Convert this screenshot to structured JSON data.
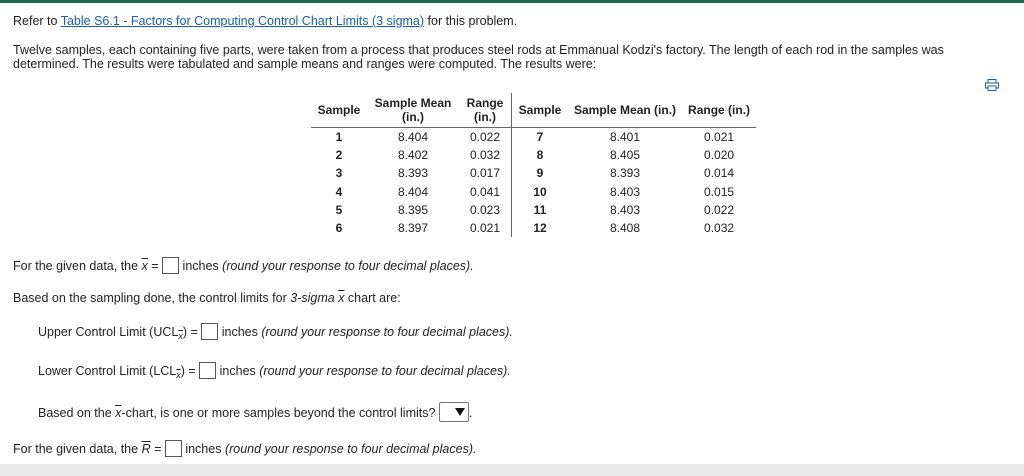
{
  "intro": {
    "prefix": "Refer to ",
    "link": "Table S6.1 - Factors for Computing Control Chart Limits (3 sigma)",
    "suffix": " for this problem."
  },
  "problem": "Twelve samples, each containing five parts, were taken from a process that produces steel rods at Emmanual Kodzi's factory. The length of each rod in the samples was determined. The results were tabulated and sample means and ranges were computed. The results were:",
  "icons": {
    "print": "print-icon",
    "dropdown": "dropdown-arrow-icon"
  },
  "table": {
    "headers": {
      "sample": "Sample",
      "mean": "Sample Mean (in.)",
      "range": "Range (in.)",
      "sample2": "Sample",
      "mean2": "Sample Mean (in.)",
      "range2": "Range (in.)"
    },
    "rows": [
      {
        "s1": "1",
        "m1": "8.404",
        "r1": "0.022",
        "s2": "7",
        "m2": "8.401",
        "r2": "0.021"
      },
      {
        "s1": "2",
        "m1": "8.402",
        "r1": "0.032",
        "s2": "8",
        "m2": "8.405",
        "r2": "0.020"
      },
      {
        "s1": "3",
        "m1": "8.393",
        "r1": "0.017",
        "s2": "9",
        "m2": "8.393",
        "r2": "0.014"
      },
      {
        "s1": "4",
        "m1": "8.404",
        "r1": "0.041",
        "s2": "10",
        "m2": "8.403",
        "r2": "0.015"
      },
      {
        "s1": "5",
        "m1": "8.395",
        "r1": "0.023",
        "s2": "11",
        "m2": "8.403",
        "r2": "0.022"
      },
      {
        "s1": "6",
        "m1": "8.397",
        "r1": "0.021",
        "s2": "12",
        "m2": "8.408",
        "r2": "0.032"
      }
    ]
  },
  "q1": {
    "prefix": "For the given data, the ",
    "sym": "x",
    "eq": " = ",
    "unit": "inches ",
    "note": "(round your response to four decimal places)."
  },
  "q2": {
    "prefix": "Based on the sampling done, the control limits for ",
    "sigma": "3-sigma",
    "sym": "x",
    "suffix": " chart are:"
  },
  "ucl": {
    "prefix": "Upper Control Limit (UCL",
    "sub": "x",
    "mid": ") = ",
    "unit": "inches ",
    "note": "(round your response to four decimal places)."
  },
  "lcl": {
    "prefix": "Lower Control Limit (LCL",
    "sub": "x",
    "mid": ") = ",
    "unit": "inches ",
    "note": "(round your response to four decimal places)."
  },
  "q3": {
    "prefix": "Based on the ",
    "sym": "x",
    "suffix": "-chart, is one or more samples beyond the control limits?",
    "end": "."
  },
  "q4": {
    "prefix": "For the given data, the ",
    "sym": "R",
    "eq": " = ",
    "unit": "inches ",
    "note": "(round your response to four decimal places)."
  }
}
